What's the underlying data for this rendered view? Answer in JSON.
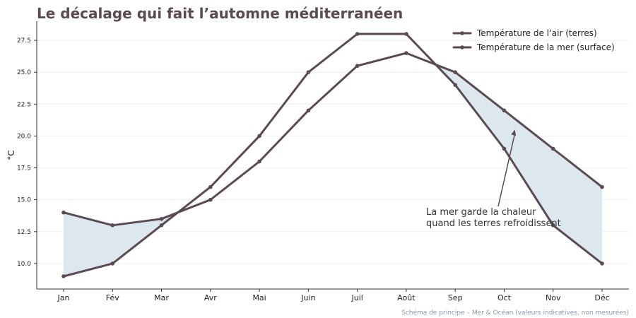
{
  "chart_data": {
    "type": "line",
    "title": "Le décalage qui fait l’automne méditerranéen",
    "xlabel": "",
    "ylabel": "°C",
    "categories": [
      "Jan",
      "Fév",
      "Mar",
      "Avr",
      "Mai",
      "Juin",
      "Juil",
      "Août",
      "Sep",
      "Oct",
      "Nov",
      "Déc"
    ],
    "series": [
      {
        "name": "Température de l’air (terres)",
        "values": [
          9.0,
          10.0,
          13.0,
          16.0,
          20.0,
          25.0,
          28.0,
          28.0,
          24.0,
          19.0,
          13.0,
          10.0
        ]
      },
      {
        "name": "Température de la mer (surface)",
        "values": [
          14.0,
          13.0,
          13.5,
          15.0,
          18.0,
          22.0,
          25.5,
          26.5,
          25.0,
          22.0,
          19.0,
          16.0
        ]
      }
    ],
    "ylim": [
      8.0,
      29.0
    ],
    "yticks": [
      10.0,
      12.5,
      15.0,
      17.5,
      20.0,
      22.5,
      25.0,
      27.5
    ],
    "ytick_labels": [
      "10.0",
      "12.5",
      "15.0",
      "17.5",
      "20.0",
      "22.5",
      "25.0",
      "27.5"
    ],
    "grid": "horizontal",
    "legend_position": "top-right",
    "fill_where_sea_above_air": true,
    "annotation": {
      "lines": [
        "La mer garde la chaleur",
        "quand les terres refroidissent"
      ],
      "points_to": {
        "x": "Oct",
        "y": 20.5
      }
    },
    "footer": "Schéma de principe – Mer & Océan (valeurs indicatives, non mesurées)",
    "colors": {
      "line": "#5b4a52",
      "fill": "#dde8ee",
      "title": "#5a4a52",
      "grid": "#eeeeee",
      "axis": "#333333",
      "footer": "#8a9aa8"
    }
  }
}
